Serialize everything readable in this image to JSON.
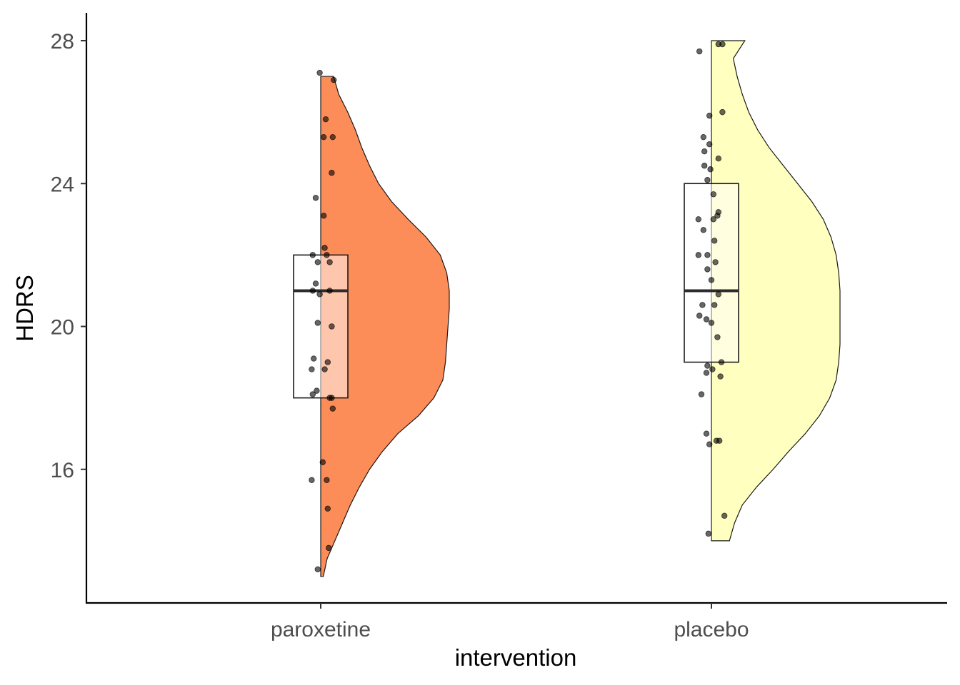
{
  "chart_data": {
    "type": "raincloud",
    "title": "",
    "xlabel": "intervention",
    "ylabel": "HDRS",
    "ylim": [
      12.4,
      28.7
    ],
    "yticks": [
      16,
      20,
      24,
      28
    ],
    "grid": false,
    "legend": "none",
    "categories": [
      "paroxetine",
      "placebo"
    ],
    "groups": [
      {
        "category": "paroxetine",
        "fill": "#fc8d59",
        "min": 13,
        "max": 27,
        "box": {
          "q1": 18,
          "median": 21,
          "q3": 22
        },
        "density": [
          [
            13.0,
            0.02
          ],
          [
            13.5,
            0.05
          ],
          [
            14.0,
            0.11
          ],
          [
            14.5,
            0.17
          ],
          [
            15.0,
            0.23
          ],
          [
            15.5,
            0.3
          ],
          [
            16.0,
            0.38
          ],
          [
            16.5,
            0.48
          ],
          [
            17.0,
            0.6
          ],
          [
            17.5,
            0.76
          ],
          [
            18.0,
            0.88
          ],
          [
            18.5,
            0.95
          ],
          [
            19.0,
            0.97
          ],
          [
            19.5,
            0.98
          ],
          [
            20.0,
            0.99
          ],
          [
            20.5,
            1.0
          ],
          [
            21.0,
            1.0
          ],
          [
            21.5,
            0.98
          ],
          [
            22.0,
            0.93
          ],
          [
            22.5,
            0.82
          ],
          [
            23.0,
            0.68
          ],
          [
            23.5,
            0.55
          ],
          [
            24.0,
            0.45
          ],
          [
            24.5,
            0.38
          ],
          [
            25.0,
            0.32
          ],
          [
            25.5,
            0.27
          ],
          [
            26.0,
            0.21
          ],
          [
            26.5,
            0.14
          ],
          [
            27.0,
            0.1
          ]
        ],
        "points": [
          [
            -0.01,
            27.1
          ],
          [
            0.13,
            26.9
          ],
          [
            0.05,
            25.8
          ],
          [
            0.03,
            25.3
          ],
          [
            0.12,
            25.3
          ],
          [
            0.11,
            24.3
          ],
          [
            -0.05,
            23.6
          ],
          [
            0.03,
            23.1
          ],
          [
            0.06,
            22.0
          ],
          [
            -0.08,
            22.0
          ],
          [
            0.04,
            22.2
          ],
          [
            -0.03,
            21.8
          ],
          [
            0.09,
            21.8
          ],
          [
            -0.05,
            21.2
          ],
          [
            0.09,
            21.0
          ],
          [
            -0.08,
            21.0
          ],
          [
            -0.01,
            20.9
          ],
          [
            -0.03,
            20.1
          ],
          [
            0.11,
            20.0
          ],
          [
            -0.07,
            19.1
          ],
          [
            0.07,
            19.0
          ],
          [
            -0.09,
            18.8
          ],
          [
            0.04,
            18.8
          ],
          [
            -0.04,
            18.2
          ],
          [
            -0.08,
            18.1
          ],
          [
            0.09,
            18.0
          ],
          [
            0.11,
            18.0
          ],
          [
            0.12,
            17.7
          ],
          [
            0.02,
            16.2
          ],
          [
            -0.09,
            15.7
          ],
          [
            0.06,
            15.7
          ],
          [
            0.07,
            14.9
          ],
          [
            0.08,
            13.8
          ],
          [
            -0.03,
            13.2
          ]
        ]
      },
      {
        "category": "placebo",
        "fill": "#ffffbf",
        "min": 14,
        "max": 28,
        "box": {
          "q1": 19,
          "median": 21,
          "q3": 24
        },
        "density": [
          [
            14.0,
            0.14
          ],
          [
            14.5,
            0.18
          ],
          [
            15.0,
            0.24
          ],
          [
            15.5,
            0.35
          ],
          [
            16.0,
            0.48
          ],
          [
            16.5,
            0.6
          ],
          [
            17.0,
            0.73
          ],
          [
            17.5,
            0.84
          ],
          [
            18.0,
            0.92
          ],
          [
            18.5,
            0.97
          ],
          [
            19.0,
            0.99
          ],
          [
            19.5,
            1.0
          ],
          [
            20.0,
            1.0
          ],
          [
            20.5,
            1.0
          ],
          [
            21.0,
            1.0
          ],
          [
            21.5,
            0.99
          ],
          [
            22.0,
            0.97
          ],
          [
            22.5,
            0.93
          ],
          [
            23.0,
            0.87
          ],
          [
            23.5,
            0.78
          ],
          [
            24.0,
            0.67
          ],
          [
            24.5,
            0.56
          ],
          [
            25.0,
            0.45
          ],
          [
            25.5,
            0.36
          ],
          [
            26.0,
            0.29
          ],
          [
            26.5,
            0.24
          ],
          [
            27.0,
            0.2
          ],
          [
            27.5,
            0.17
          ],
          [
            28.0,
            0.26
          ]
        ]
      }
    ]
  },
  "placebo_points": [
    [
      0.07,
      27.9
    ],
    [
      0.11,
      27.9
    ],
    [
      -0.12,
      27.7
    ],
    [
      0.11,
      26.0
    ],
    [
      -0.02,
      25.9
    ],
    [
      -0.08,
      25.3
    ],
    [
      -0.02,
      25.1
    ],
    [
      -0.07,
      24.9
    ],
    [
      0.07,
      24.7
    ],
    [
      -0.07,
      24.5
    ],
    [
      -0.01,
      24.4
    ],
    [
      -0.04,
      24.1
    ],
    [
      0.02,
      23.7
    ],
    [
      -0.13,
      23.0
    ],
    [
      0.07,
      23.2
    ],
    [
      0.06,
      23.1
    ],
    [
      0.02,
      23.0
    ],
    [
      -0.08,
      22.7
    ],
    [
      0.03,
      22.4
    ],
    [
      -0.13,
      22.0
    ],
    [
      -0.04,
      22.0
    ],
    [
      0.04,
      21.8
    ],
    [
      -0.04,
      21.6
    ],
    [
      0.0,
      21.3
    ],
    [
      0.07,
      20.9
    ],
    [
      -0.09,
      20.6
    ],
    [
      0.03,
      20.6
    ],
    [
      -0.12,
      20.3
    ],
    [
      -0.05,
      20.2
    ],
    [
      0.0,
      20.1
    ],
    [
      0.06,
      19.7
    ],
    [
      0.1,
      19.0
    ],
    [
      -0.04,
      18.9
    ],
    [
      0.01,
      18.8
    ],
    [
      -0.05,
      18.7
    ],
    [
      0.09,
      18.6
    ],
    [
      -0.1,
      18.1
    ],
    [
      -0.05,
      17.0
    ],
    [
      -0.02,
      16.7
    ],
    [
      0.05,
      16.8
    ],
    [
      0.08,
      16.8
    ],
    [
      0.13,
      14.7
    ],
    [
      -0.03,
      14.2
    ]
  ]
}
